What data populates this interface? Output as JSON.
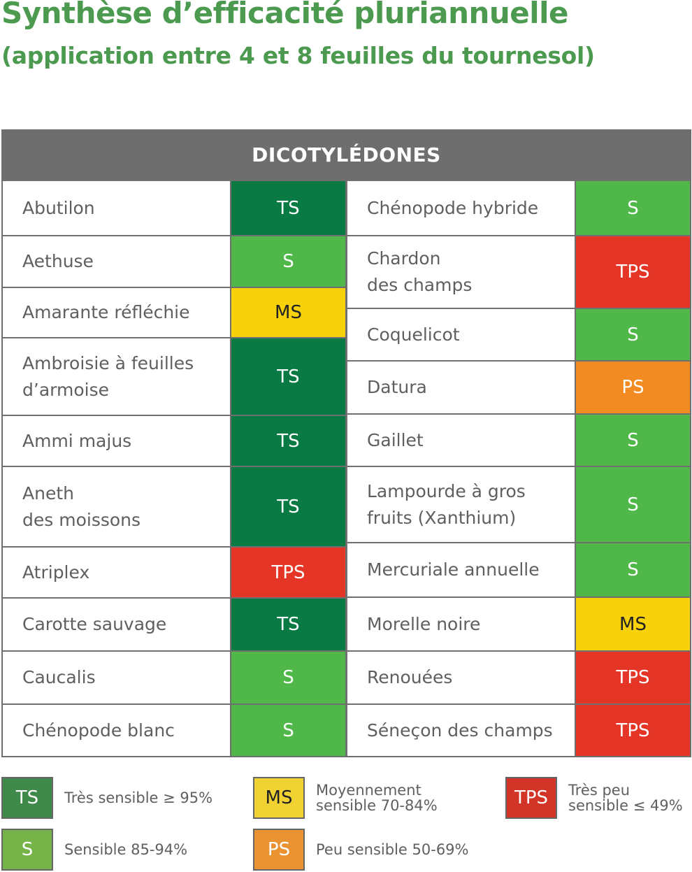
{
  "title_line1": "Synthèse d’efficacité pluriannuelle",
  "title_line2": "(application entre 4 et 8 feuilles du tournesol)",
  "table_header": "DICOTYLÉDONES",
  "left_rows": [
    {
      "name": "Abutilon",
      "rating": "TS"
    },
    {
      "name": "Aethuse",
      "rating": "S"
    },
    {
      "name": "Amarante réfléchie",
      "rating": "MS"
    },
    {
      "name": "Ambroisie à feuilles\nd’armoise",
      "rating": "TS"
    },
    {
      "name": "Ammi majus",
      "rating": "TS"
    },
    {
      "name": "Aneth\ndes moissons",
      "rating": "TS"
    },
    {
      "name": "Atriplex",
      "rating": "TPS"
    },
    {
      "name": "Carotte sauvage",
      "rating": "TS"
    },
    {
      "name": "Caucalis",
      "rating": "S"
    },
    {
      "name": "Chénopode blanc",
      "rating": "S"
    }
  ],
  "right_rows": [
    {
      "name": "Chénopode hybride",
      "rating": "S"
    },
    {
      "name": "Chardon\ndes champs",
      "rating": "TPS"
    },
    {
      "name": "Coquelicot",
      "rating": "S"
    },
    {
      "name": "Datura",
      "rating": "PS"
    },
    {
      "name": "Gaillet",
      "rating": "S"
    },
    {
      "name": "Lampourde à gros\nfruits (Xanthium)",
      "rating": "S"
    },
    {
      "name": "Mercuriale annuelle",
      "rating": "S"
    },
    {
      "name": "Morelle noire",
      "rating": "MS"
    },
    {
      "name": "Renouées",
      "rating": "TPS"
    },
    {
      "name": "Séneçon des champs",
      "rating": "TPS"
    }
  ],
  "legend": [
    {
      "code": "TS",
      "text": "Très sensible ≥ 95%"
    },
    {
      "code": "S",
      "text": "Sensible 85-94%"
    },
    {
      "code": "MS",
      "text": "Moyennement\nsensible 70-84%"
    },
    {
      "code": "PS",
      "text": "Peu sensible 50-69%"
    },
    {
      "code": "TPS",
      "text": "Très peu\nsensible ≤ 49%"
    }
  ],
  "colors": {
    "title_green": "#4c9a4f",
    "header_gray": "#6e6e6e",
    "TS": "#0a7a45",
    "S": "#4fb848",
    "MS": "#f7d10a",
    "PS": "#f28b21",
    "TPS": "#e53526"
  }
}
